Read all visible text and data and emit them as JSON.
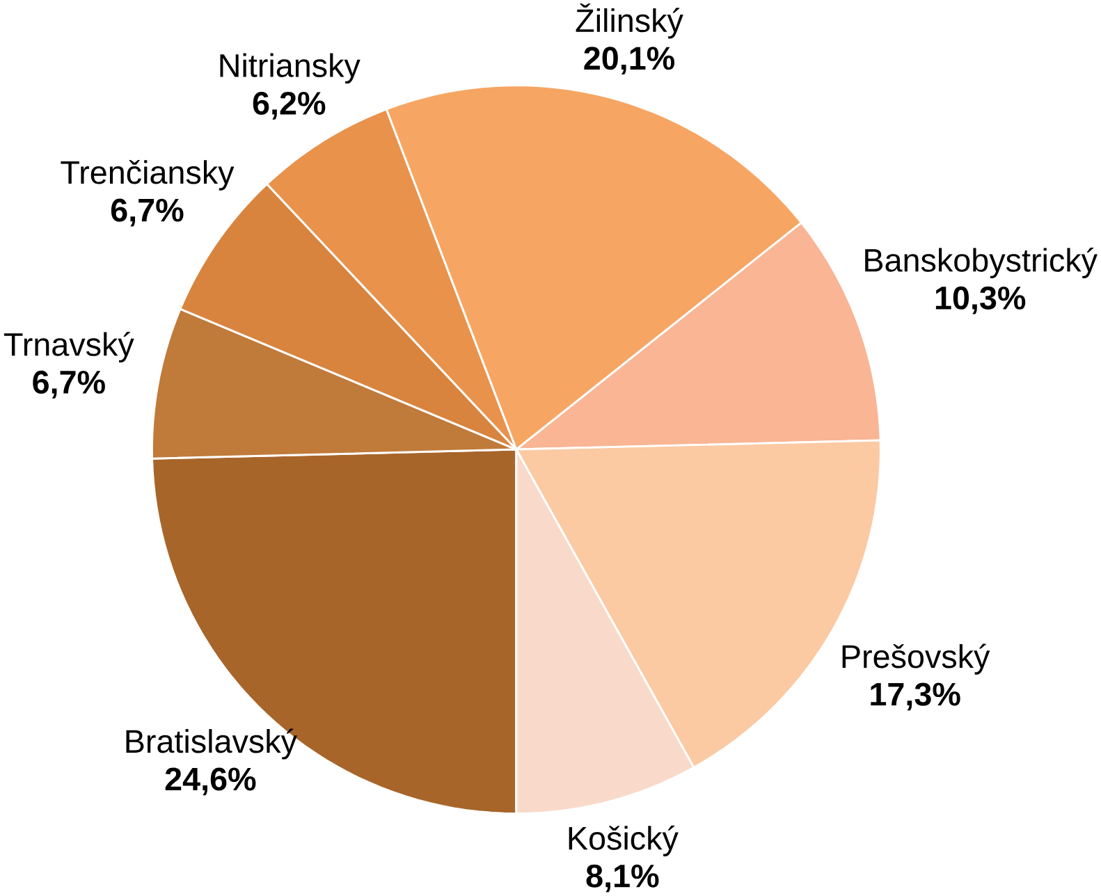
{
  "chart_data": {
    "type": "pie",
    "categories": [
      "Bratislavský",
      "Trnavský",
      "Trenčiansky",
      "Nitriansky",
      "Žilinský",
      "Banskobystrický",
      "Prešovský",
      "Košický"
    ],
    "values": [
      24.6,
      6.7,
      6.7,
      6.2,
      20.1,
      10.3,
      17.3,
      8.1
    ],
    "value_labels": [
      "24,6%",
      "6,7%",
      "6,7%",
      "6,2%",
      "20,1%",
      "10,3%",
      "17,3%",
      "8,1%"
    ],
    "colors": [
      "#a8652a",
      "#c07a3a",
      "#d8843e",
      "#e8924c",
      "#f6a562",
      "#f9b594",
      "#fbc9a2",
      "#f9d9c9"
    ],
    "legend": false
  }
}
